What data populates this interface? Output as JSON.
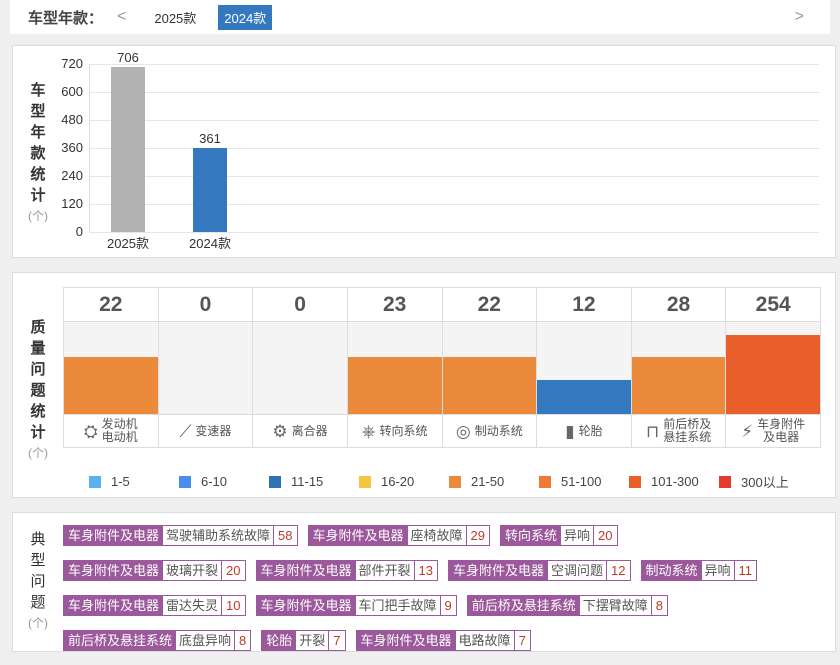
{
  "header": {
    "label": "车型年款：",
    "prev": "<",
    "next": ">",
    "years": [
      {
        "label": "2025款",
        "active": false
      },
      {
        "label": "2024款",
        "active": true
      }
    ]
  },
  "model_stats": {
    "title_chars": [
      "车",
      "型",
      "年",
      "款",
      "统",
      "计"
    ],
    "unit": "(个)"
  },
  "chart_data": {
    "type": "bar",
    "categories": [
      "2025款",
      "2024款"
    ],
    "values": [
      706,
      361
    ],
    "colors": [
      "#b3b3b3",
      "#3478c0"
    ],
    "ylim": [
      0,
      720
    ],
    "yticks": [
      0,
      120,
      240,
      360,
      480,
      600,
      720
    ],
    "ylabel": "车型年款统计(个)",
    "grid": true
  },
  "quality": {
    "title_chars": [
      "质",
      "量",
      "问",
      "题",
      "统",
      "计"
    ],
    "unit": "(个)",
    "columns": [
      {
        "value": "22",
        "label": "发动机\n电动机",
        "icon": "engine-icon",
        "level": 0.62,
        "color": "#ec8a3b"
      },
      {
        "value": "0",
        "label": "变速器",
        "icon": "gear-shift-icon",
        "level": 0,
        "color": "#ec8a3b"
      },
      {
        "value": "0",
        "label": "离合器",
        "icon": "clutch-icon",
        "level": 0,
        "color": "#ec8a3b"
      },
      {
        "value": "23",
        "label": "转向系统",
        "icon": "steering-wheel-icon",
        "level": 0.62,
        "color": "#ec8a3b"
      },
      {
        "value": "22",
        "label": "制动系统",
        "icon": "brake-icon",
        "level": 0.62,
        "color": "#ec8a3b"
      },
      {
        "value": "12",
        "label": "轮胎",
        "icon": "tire-icon",
        "level": 0.37,
        "color": "#3478c0"
      },
      {
        "value": "28",
        "label": "前后桥及\n悬挂系统",
        "icon": "axle-icon",
        "level": 0.62,
        "color": "#ec8a3b"
      },
      {
        "value": "254",
        "label": "车身附件\n及电器",
        "icon": "battery-icon",
        "level": 0.86,
        "color": "#e95f2c"
      }
    ],
    "legend": [
      {
        "label": "1-5",
        "color": "#5bb1f0"
      },
      {
        "label": "6-10",
        "color": "#4a8ff0"
      },
      {
        "label": "11-15",
        "color": "#2f72b8"
      },
      {
        "label": "16-20",
        "color": "#f5c542"
      },
      {
        "label": "21-50",
        "color": "#ec8a3b"
      },
      {
        "label": "51-100",
        "color": "#ee7a35"
      },
      {
        "label": "101-300",
        "color": "#e95f2c"
      },
      {
        "label": "300以上",
        "color": "#e33b2e"
      }
    ]
  },
  "typical": {
    "title_chars": [
      "典",
      "型",
      "问",
      "题"
    ],
    "unit": "(个)",
    "rows": [
      [
        {
          "c": "车身附件及电器",
          "i": "驾驶辅助系统故障",
          "n": "58"
        },
        {
          "c": "车身附件及电器",
          "i": "座椅故障",
          "n": "29"
        },
        {
          "c": "转向系统",
          "i": "异响",
          "n": "20"
        }
      ],
      [
        {
          "c": "车身附件及电器",
          "i": "玻璃开裂",
          "n": "20"
        },
        {
          "c": "车身附件及电器",
          "i": "部件开裂",
          "n": "13"
        },
        {
          "c": "车身附件及电器",
          "i": "空调问题",
          "n": "12"
        },
        {
          "c": "制动系统",
          "i": "异响",
          "n": "11"
        }
      ],
      [
        {
          "c": "车身附件及电器",
          "i": "雷达失灵",
          "n": "10"
        },
        {
          "c": "车身附件及电器",
          "i": "车门把手故障",
          "n": "9"
        },
        {
          "c": "前后桥及悬挂系统",
          "i": "下摆臂故障",
          "n": "8"
        }
      ],
      [
        {
          "c": "前后桥及悬挂系统",
          "i": "底盘异响",
          "n": "8"
        },
        {
          "c": "轮胎",
          "i": "开裂",
          "n": "7"
        },
        {
          "c": "车身附件及电器",
          "i": "电路故障",
          "n": "7"
        }
      ]
    ]
  }
}
